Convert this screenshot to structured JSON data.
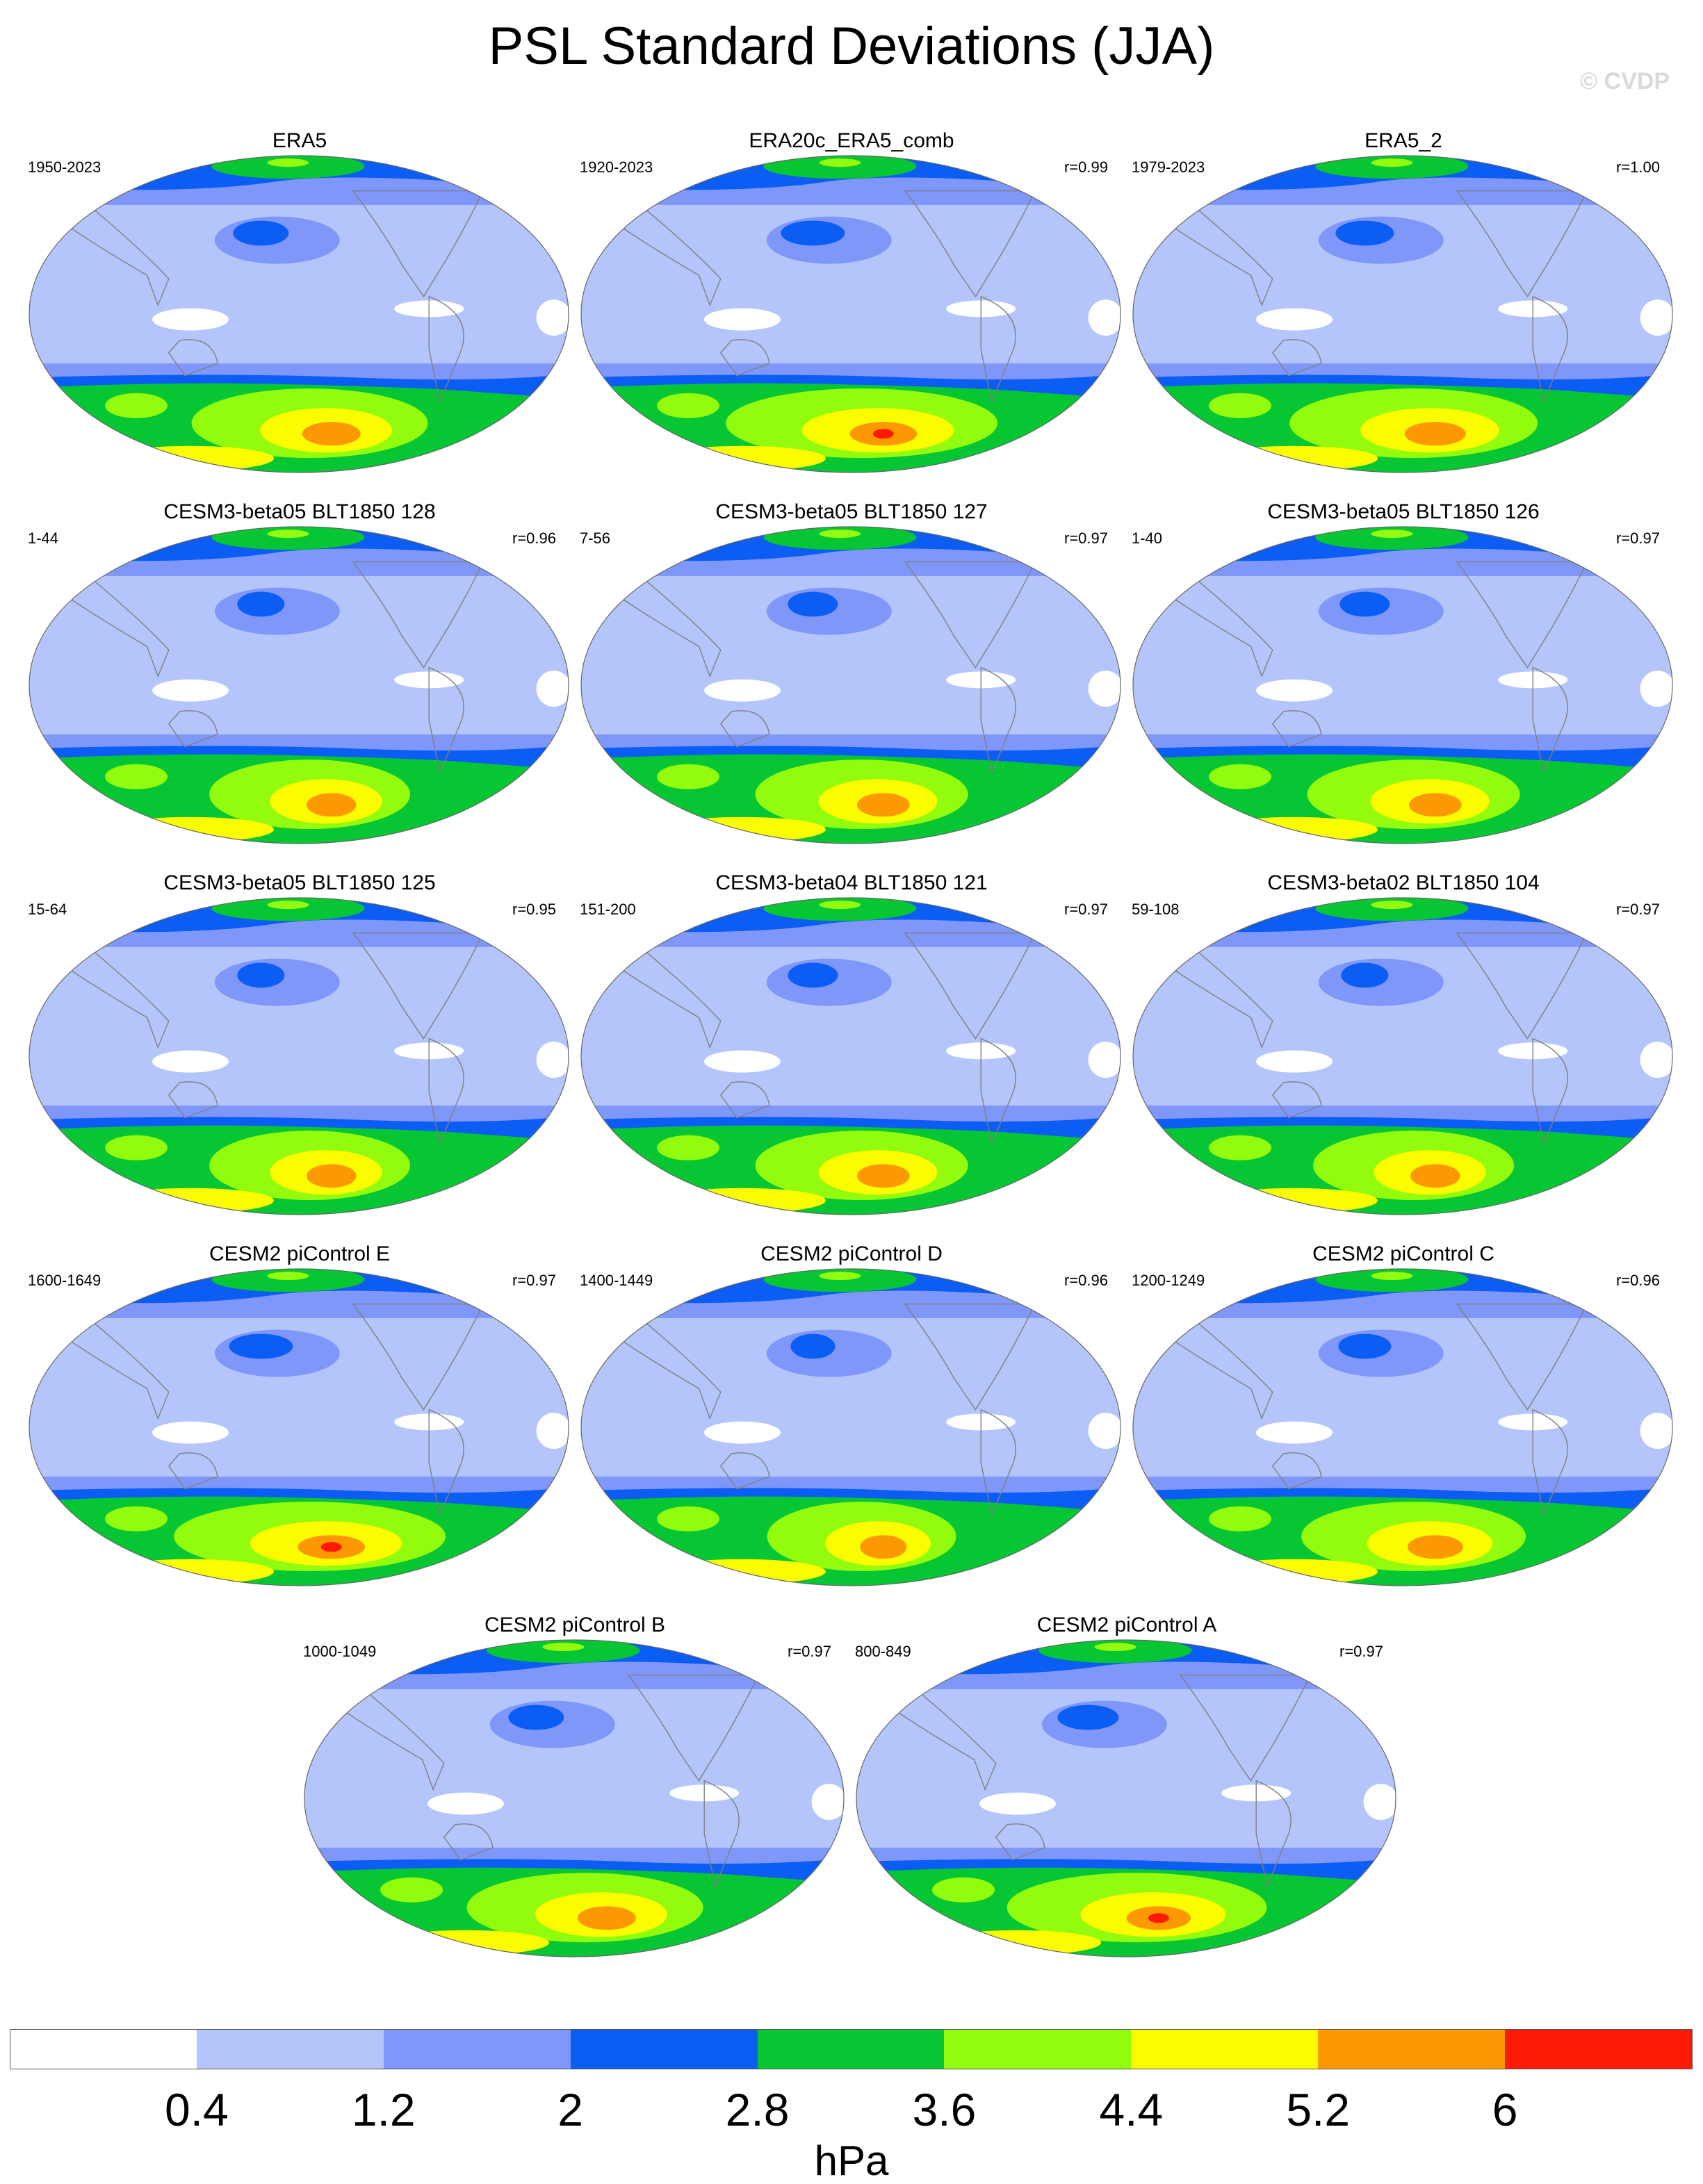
{
  "figure": {
    "title": "PSL Standard Deviations (JJA)",
    "copyright": "© CVDP",
    "units": "hPa"
  },
  "colorbar": {
    "labels": [
      "0.4",
      "1.2",
      "2",
      "2.8",
      "3.6",
      "4.4",
      "5.2",
      "6"
    ],
    "colors": [
      "#ffffff",
      "#b4c5fb",
      "#7f97f9",
      "#0c5df4",
      "#07c633",
      "#92fb0e",
      "#fcfc01",
      "#fc9902",
      "#fc1a04"
    ]
  },
  "panels": [
    {
      "title": "ERA5",
      "years": "1950-2023",
      "r": "",
      "intensity": 1.0
    },
    {
      "title": "ERA20c_ERA5_comb",
      "years": "1920-2023",
      "r": "r=0.99",
      "intensity": 1.15
    },
    {
      "title": "ERA5_2",
      "years": "1979-2023",
      "r": "r=1.00",
      "intensity": 1.05
    },
    {
      "title": "CESM3-beta05 BLT1850 128",
      "years": "1-44",
      "r": "r=0.96",
      "intensity": 0.85
    },
    {
      "title": "CESM3-beta05 BLT1850 127",
      "years": "7-56",
      "r": "r=0.97",
      "intensity": 0.9
    },
    {
      "title": "CESM3-beta05 BLT1850 126",
      "years": "1-40",
      "r": "r=0.97",
      "intensity": 0.9
    },
    {
      "title": "CESM3-beta05 BLT1850 125",
      "years": "15-64",
      "r": "r=0.95",
      "intensity": 0.85
    },
    {
      "title": "CESM3-beta04 BLT1850 121",
      "years": "151-200",
      "r": "r=0.97",
      "intensity": 0.9
    },
    {
      "title": "CESM3-beta02 BLT1850 104",
      "years": "59-108",
      "r": "r=0.97",
      "intensity": 0.85
    },
    {
      "title": "CESM2 piControl E",
      "years": "1600-1649",
      "r": "r=0.97",
      "intensity": 1.15
    },
    {
      "title": "CESM2 piControl D",
      "years": "1400-1449",
      "r": "r=0.96",
      "intensity": 0.8
    },
    {
      "title": "CESM2 piControl C",
      "years": "1200-1249",
      "r": "r=0.96",
      "intensity": 0.95
    },
    {
      "title": "CESM2 piControl B",
      "years": "1000-1049",
      "r": "r=0.97",
      "intensity": 1.0
    },
    {
      "title": "CESM2 piControl A",
      "years": "800-849",
      "r": "r=0.97",
      "intensity": 1.1
    }
  ]
}
